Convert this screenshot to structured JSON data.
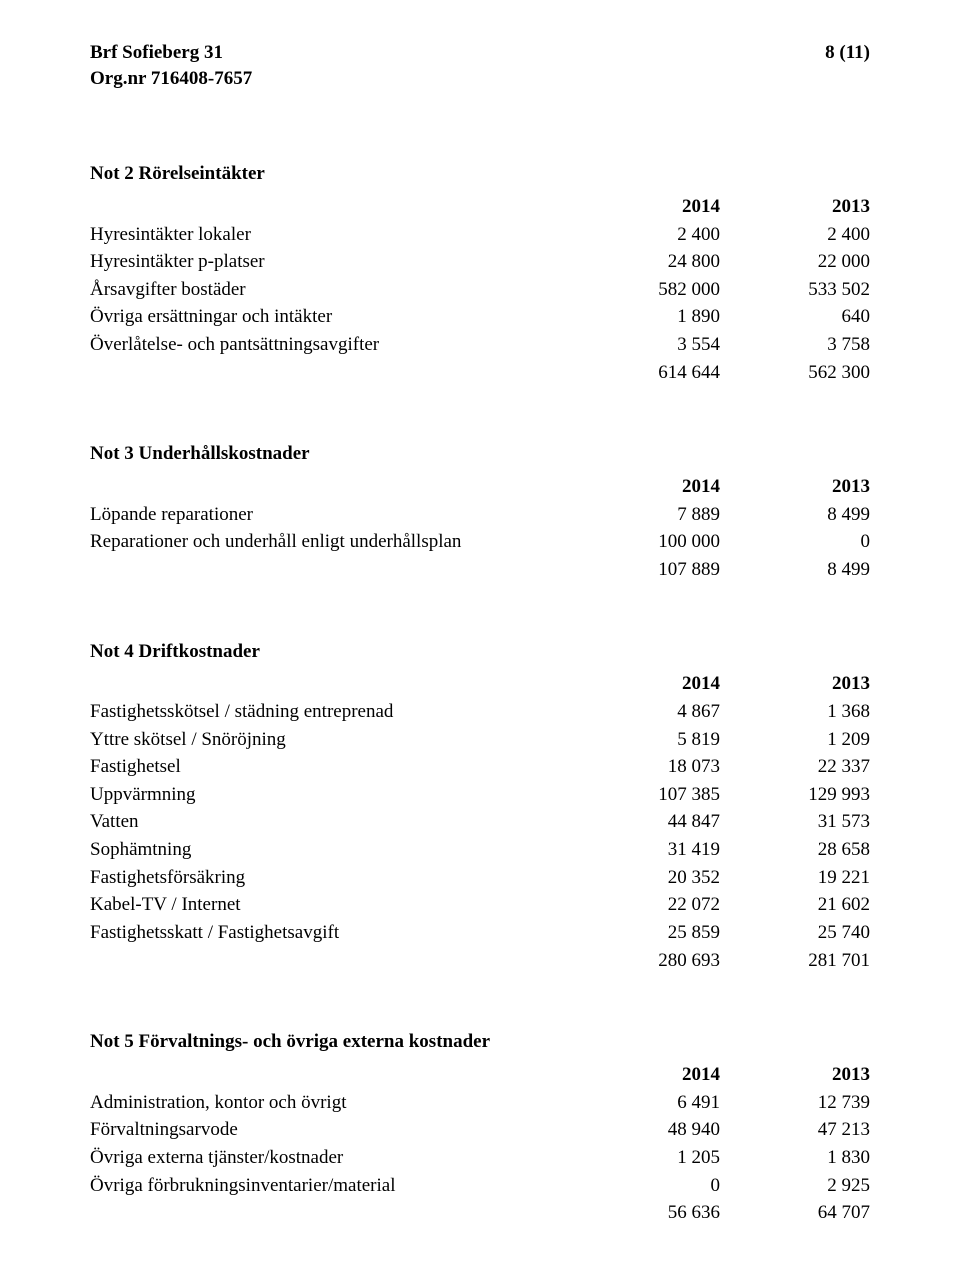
{
  "header": {
    "org_name": "Brf Sofieberg 31",
    "org_nr": "Org.nr 716408-7657",
    "page_marker": "8 (11)"
  },
  "sections": [
    {
      "title": "Not 2 Rörelseintäkter",
      "col_a": "2014",
      "col_b": "2013",
      "rows": [
        {
          "label": "Hyresintäkter lokaler",
          "a": "2 400",
          "b": "2 400"
        },
        {
          "label": "Hyresintäkter  p-platser",
          "a": "24 800",
          "b": "22 000"
        },
        {
          "label": "Årsavgifter bostäder",
          "a": "582 000",
          "b": "533 502"
        },
        {
          "label": "Övriga ersättningar och intäkter",
          "a": "1 890",
          "b": "640"
        },
        {
          "label": "Överlåtelse- och pantsättningsavgifter",
          "a": "3 554",
          "b": "3 758"
        }
      ],
      "total": {
        "a": "614 644",
        "b": "562 300"
      }
    },
    {
      "title": "Not 3 Underhållskostnader",
      "col_a": "2014",
      "col_b": "2013",
      "rows": [
        {
          "label": "Löpande reparationer",
          "a": "7 889",
          "b": "8 499"
        },
        {
          "label": "Reparationer och underhåll enligt underhållsplan",
          "a": "100 000",
          "b": "0"
        }
      ],
      "total": {
        "a": "107 889",
        "b": "8 499"
      }
    },
    {
      "title": "Not 4 Driftkostnader",
      "col_a": "2014",
      "col_b": "2013",
      "rows": [
        {
          "label": "Fastighetsskötsel / städning entreprenad",
          "a": "4 867",
          "b": "1 368"
        },
        {
          "label": "Yttre skötsel / Snöröjning",
          "a": "5 819",
          "b": "1 209"
        },
        {
          "label": "Fastighetsel",
          "a": "18 073",
          "b": "22 337"
        },
        {
          "label": "Uppvärmning",
          "a": "107 385",
          "b": "129 993"
        },
        {
          "label": "Vatten",
          "a": "44 847",
          "b": "31 573"
        },
        {
          "label": "Sophämtning",
          "a": "31 419",
          "b": "28 658"
        },
        {
          "label": "Fastighetsförsäkring",
          "a": "20 352",
          "b": "19 221"
        },
        {
          "label": "Kabel-TV / Internet",
          "a": "22 072",
          "b": "21 602"
        },
        {
          "label": "Fastighetsskatt / Fastighetsavgift",
          "a": "25 859",
          "b": "25 740"
        }
      ],
      "total": {
        "a": "280 693",
        "b": "281 701"
      }
    },
    {
      "title": "Not 5 Förvaltnings- och övriga externa kostnader",
      "col_a": "2014",
      "col_b": "2013",
      "rows": [
        {
          "label": "Administration, kontor och övrigt",
          "a": "6 491",
          "b": "12 739"
        },
        {
          "label": "Förvaltningsarvode",
          "a": "48 940",
          "b": "47 213"
        },
        {
          "label": "Övriga externa tjänster/kostnader",
          "a": "1 205",
          "b": "1 830"
        },
        {
          "label": "Övriga förbrukningsinventarier/material",
          "a": "0",
          "b": "2 925"
        }
      ],
      "total": {
        "a": "56 636",
        "b": "64 707"
      }
    }
  ]
}
